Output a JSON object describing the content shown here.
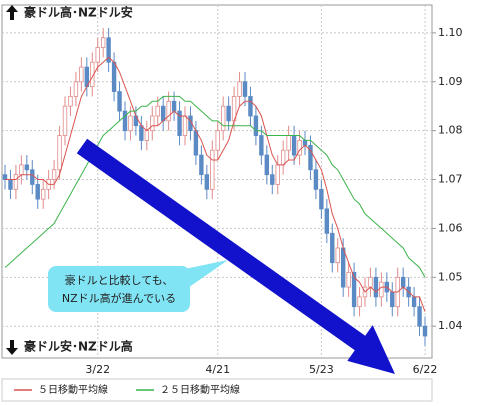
{
  "chart_data": {
    "type": "candlestick",
    "top_label": "豪ドル高･NZドル安",
    "bottom_label": "豪ドル安･NZドル高",
    "annotation": [
      "豪ドルと比較しても、",
      "NZドル高が進んでいる"
    ],
    "categories": [
      null,
      null,
      null,
      null,
      null,
      null,
      null,
      null,
      null,
      null,
      null,
      null,
      null,
      null,
      null,
      null,
      null,
      "3/22",
      null,
      null,
      null,
      null,
      null,
      null,
      null,
      null,
      null,
      null,
      null,
      null,
      null,
      null,
      null,
      null,
      null,
      null,
      null,
      null,
      null,
      "4/21",
      null,
      null,
      null,
      null,
      null,
      null,
      null,
      null,
      null,
      null,
      null,
      null,
      null,
      null,
      null,
      null,
      null,
      null,
      "5/23",
      null,
      null,
      null,
      null,
      null,
      null,
      null,
      null,
      null,
      null,
      null,
      null,
      null,
      null,
      null,
      null,
      null,
      null,
      "6/22"
    ],
    "open": [
      1.071,
      1.07,
      1.068,
      1.071,
      1.073,
      1.072,
      1.069,
      1.066,
      1.068,
      1.07,
      1.072,
      1.079,
      1.085,
      1.087,
      1.09,
      1.093,
      1.089,
      1.094,
      1.097,
      1.099,
      1.094,
      1.088,
      1.084,
      1.08,
      1.083,
      1.081,
      1.078,
      1.08,
      1.083,
      1.085,
      1.082,
      1.086,
      1.084,
      1.079,
      1.083,
      1.08,
      1.075,
      1.071,
      1.068,
      1.076,
      1.08,
      1.085,
      1.082,
      1.087,
      1.09,
      1.087,
      1.083,
      1.079,
      1.075,
      1.071,
      1.069,
      1.073,
      1.076,
      1.079,
      1.075,
      1.078,
      1.077,
      1.072,
      1.068,
      1.064,
      1.059,
      1.053,
      1.056,
      1.048,
      1.051,
      1.044,
      1.046,
      1.048,
      1.05,
      1.046,
      1.049,
      1.047,
      1.044,
      1.05,
      1.048,
      1.046,
      1.044,
      1.04
    ],
    "high": [
      1.073,
      1.072,
      1.073,
      1.075,
      1.075,
      1.074,
      1.071,
      1.07,
      1.072,
      1.074,
      1.081,
      1.087,
      1.089,
      1.092,
      1.095,
      1.095,
      1.096,
      1.099,
      1.101,
      1.101,
      1.096,
      1.09,
      1.086,
      1.085,
      1.085,
      1.083,
      1.082,
      1.085,
      1.087,
      1.087,
      1.088,
      1.088,
      1.086,
      1.085,
      1.085,
      1.082,
      1.077,
      1.073,
      1.078,
      1.082,
      1.087,
      1.087,
      1.089,
      1.092,
      1.092,
      1.089,
      1.085,
      1.081,
      1.077,
      1.073,
      1.075,
      1.078,
      1.081,
      1.081,
      1.08,
      1.08,
      1.079,
      1.074,
      1.07,
      1.066,
      1.061,
      1.058,
      1.058,
      1.053,
      1.053,
      1.048,
      1.05,
      1.052,
      1.052,
      1.051,
      1.051,
      1.049,
      1.052,
      1.052,
      1.05,
      1.048,
      1.046,
      1.042
    ],
    "low": [
      1.068,
      1.066,
      1.066,
      1.069,
      1.07,
      1.067,
      1.064,
      1.064,
      1.066,
      1.068,
      1.07,
      1.077,
      1.083,
      1.085,
      1.088,
      1.087,
      1.087,
      1.092,
      1.095,
      1.092,
      1.086,
      1.082,
      1.078,
      1.078,
      1.079,
      1.076,
      1.076,
      1.078,
      1.081,
      1.08,
      1.08,
      1.082,
      1.077,
      1.077,
      1.078,
      1.073,
      1.069,
      1.066,
      1.066,
      1.074,
      1.078,
      1.08,
      1.08,
      1.085,
      1.085,
      1.081,
      1.077,
      1.073,
      1.069,
      1.067,
      1.067,
      1.071,
      1.074,
      1.073,
      1.073,
      1.075,
      1.07,
      1.066,
      1.062,
      1.057,
      1.051,
      1.051,
      1.046,
      1.046,
      1.042,
      1.042,
      1.044,
      1.046,
      1.044,
      1.044,
      1.045,
      1.042,
      1.042,
      1.046,
      1.044,
      1.042,
      1.038,
      1.036
    ],
    "close": [
      1.07,
      1.068,
      1.071,
      1.073,
      1.072,
      1.069,
      1.066,
      1.068,
      1.07,
      1.072,
      1.079,
      1.085,
      1.087,
      1.09,
      1.093,
      1.089,
      1.094,
      1.097,
      1.099,
      1.094,
      1.088,
      1.084,
      1.08,
      1.083,
      1.081,
      1.078,
      1.08,
      1.083,
      1.085,
      1.082,
      1.086,
      1.084,
      1.079,
      1.083,
      1.08,
      1.075,
      1.071,
      1.068,
      1.076,
      1.08,
      1.085,
      1.082,
      1.087,
      1.09,
      1.087,
      1.083,
      1.079,
      1.075,
      1.071,
      1.069,
      1.073,
      1.076,
      1.079,
      1.075,
      1.078,
      1.077,
      1.072,
      1.068,
      1.064,
      1.059,
      1.053,
      1.056,
      1.048,
      1.051,
      1.044,
      1.046,
      1.048,
      1.05,
      1.046,
      1.049,
      1.047,
      1.044,
      1.05,
      1.048,
      1.046,
      1.044,
      1.04,
      1.038
    ],
    "up_color": "#e08a8a",
    "down_color": "#5b8ac4",
    "series": [
      {
        "name": "５日移動平均線",
        "color": "#d9534f",
        "values": [
          1.07,
          1.07,
          1.07,
          1.071,
          1.071,
          1.071,
          1.07,
          1.07,
          1.069,
          1.069,
          1.071,
          1.075,
          1.079,
          1.083,
          1.087,
          1.089,
          1.091,
          1.093,
          1.094,
          1.095,
          1.094,
          1.092,
          1.089,
          1.086,
          1.083,
          1.081,
          1.08,
          1.081,
          1.081,
          1.082,
          1.083,
          1.084,
          1.083,
          1.083,
          1.082,
          1.08,
          1.078,
          1.075,
          1.074,
          1.074,
          1.076,
          1.078,
          1.082,
          1.085,
          1.086,
          1.086,
          1.085,
          1.083,
          1.079,
          1.075,
          1.073,
          1.073,
          1.074,
          1.074,
          1.076,
          1.077,
          1.076,
          1.074,
          1.072,
          1.068,
          1.063,
          1.06,
          1.056,
          1.053,
          1.05,
          1.049,
          1.047,
          1.048,
          1.047,
          1.048,
          1.048,
          1.047,
          1.047,
          1.048,
          1.047,
          1.046,
          1.046,
          1.043
        ]
      },
      {
        "name": "２５日移動平均線",
        "color": "#3cb44b",
        "values": [
          1.052,
          1.053,
          1.054,
          1.055,
          1.056,
          1.057,
          1.058,
          1.059,
          1.06,
          1.061,
          1.063,
          1.065,
          1.067,
          1.069,
          1.071,
          1.073,
          1.075,
          1.077,
          1.079,
          1.08,
          1.081,
          1.082,
          1.083,
          1.084,
          1.084,
          1.085,
          1.085,
          1.086,
          1.086,
          1.087,
          1.087,
          1.087,
          1.087,
          1.086,
          1.086,
          1.085,
          1.084,
          1.083,
          1.082,
          1.082,
          1.081,
          1.081,
          1.081,
          1.081,
          1.081,
          1.081,
          1.08,
          1.08,
          1.079,
          1.079,
          1.079,
          1.079,
          1.079,
          1.079,
          1.079,
          1.078,
          1.078,
          1.077,
          1.076,
          1.075,
          1.073,
          1.072,
          1.07,
          1.068,
          1.066,
          1.065,
          1.063,
          1.062,
          1.061,
          1.06,
          1.059,
          1.058,
          1.057,
          1.056,
          1.054,
          1.053,
          1.052,
          1.05
        ]
      }
    ],
    "ylim": [
      1.0335,
      1.1057
    ],
    "yticks": [
      {
        "value": 1.1,
        "label": "1.10"
      },
      1.09,
      1.08,
      1.07,
      1.06,
      1.05,
      1.04
    ],
    "grid": true
  }
}
